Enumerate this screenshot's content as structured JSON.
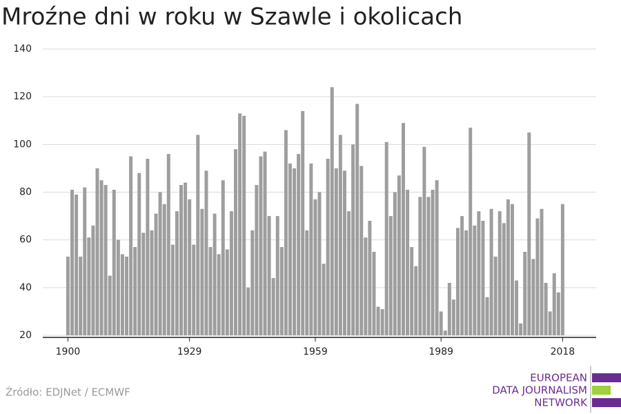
{
  "chart_data": {
    "type": "bar",
    "title": "Mroźne dni w roku w Szawle i okolicach",
    "source": "Źródło: EDJNet / ECMWF",
    "logo": [
      "EUROPEAN",
      "DATA JOURNALISM",
      "NETWORK"
    ],
    "x": [
      1900,
      1901,
      1902,
      1903,
      1904,
      1905,
      1906,
      1907,
      1908,
      1909,
      1910,
      1911,
      1912,
      1913,
      1914,
      1915,
      1916,
      1917,
      1918,
      1919,
      1920,
      1921,
      1922,
      1923,
      1924,
      1925,
      1926,
      1927,
      1928,
      1929,
      1930,
      1931,
      1932,
      1933,
      1934,
      1935,
      1936,
      1937,
      1938,
      1939,
      1940,
      1941,
      1942,
      1943,
      1944,
      1945,
      1946,
      1947,
      1948,
      1949,
      1950,
      1951,
      1952,
      1953,
      1954,
      1955,
      1956,
      1957,
      1958,
      1959,
      1960,
      1961,
      1962,
      1963,
      1964,
      1965,
      1966,
      1967,
      1968,
      1969,
      1970,
      1971,
      1972,
      1973,
      1974,
      1975,
      1976,
      1977,
      1978,
      1979,
      1980,
      1981,
      1982,
      1983,
      1984,
      1985,
      1986,
      1987,
      1988,
      1989,
      1990,
      1991,
      1992,
      1993,
      1994,
      1995,
      1996,
      1997,
      1998,
      1999,
      2000,
      2001,
      2002,
      2003,
      2004,
      2005,
      2006,
      2007,
      2008,
      2009,
      2010,
      2011,
      2012,
      2013,
      2014,
      2015,
      2016,
      2017,
      2018
    ],
    "values": [
      53,
      81,
      79,
      53,
      82,
      61,
      66,
      90,
      85,
      83,
      45,
      81,
      60,
      54,
      53,
      95,
      57,
      88,
      63,
      94,
      64,
      71,
      80,
      75,
      96,
      58,
      72,
      83,
      84,
      77,
      58,
      104,
      73,
      89,
      57,
      71,
      54,
      85,
      56,
      72,
      98,
      113,
      112,
      40,
      64,
      83,
      95,
      97,
      70,
      44,
      70,
      57,
      106,
      92,
      90,
      96,
      114,
      64,
      92,
      77,
      80,
      50,
      94,
      124,
      90,
      104,
      89,
      72,
      100,
      117,
      91,
      61,
      68,
      55,
      32,
      31,
      101,
      70,
      80,
      87,
      109,
      81,
      57,
      49,
      78,
      99,
      78,
      81,
      85,
      30,
      22,
      42,
      35,
      65,
      70,
      64,
      107,
      66,
      72,
      68,
      36,
      73,
      53,
      72,
      67,
      77,
      75,
      43,
      25,
      55,
      105,
      52,
      69,
      73,
      42,
      30,
      46,
      38,
      75
    ],
    "color": "#9e9e9e",
    "xlim": [
      1894,
      2026
    ],
    "xticks": [
      1900,
      1929,
      1959,
      1989,
      2018
    ],
    "ylim": [
      20,
      140
    ],
    "yticks": [
      20,
      40,
      60,
      80,
      100,
      120,
      140
    ],
    "grid": true
  }
}
